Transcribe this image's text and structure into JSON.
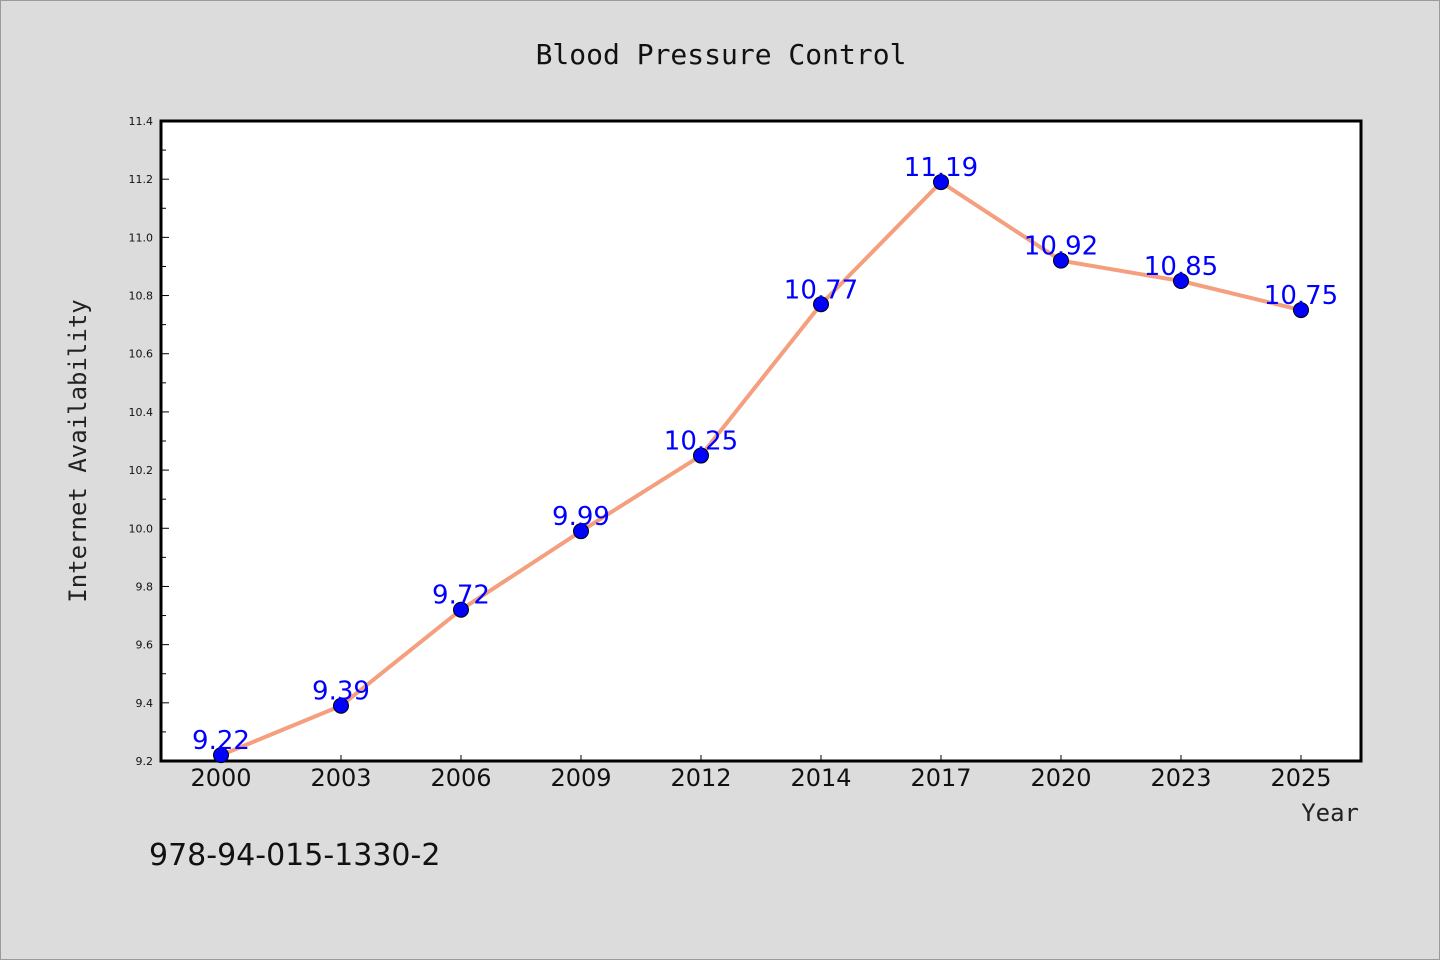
{
  "chart_data": {
    "type": "line",
    "title": "Blood Pressure Control",
    "xlabel": "Year",
    "ylabel": "Internet Availability",
    "categories": [
      "2000",
      "2003",
      "2006",
      "2009",
      "2012",
      "2014",
      "2017",
      "2020",
      "2023",
      "2025"
    ],
    "series": [
      {
        "values": [
          9.22,
          9.39,
          9.72,
          9.99,
          10.25,
          10.77,
          11.19,
          10.92,
          10.85,
          10.75
        ],
        "line_color": "#f4a07e",
        "marker_color": "#0000ff"
      }
    ],
    "data_labels": [
      "9.22",
      "9.39",
      "9.72",
      "9.99",
      "10.25",
      "10.77",
      "11.19",
      "10.92",
      "10.85",
      "10.75"
    ],
    "ylim": [
      9.2,
      11.4
    ],
    "yticks": [
      9.2,
      9.4,
      9.6,
      9.8,
      10.0,
      10.2,
      10.4,
      10.6,
      10.8,
      11.0,
      11.2,
      11.4
    ],
    "ytick_labels": [
      "9.2",
      "9.4",
      "9.6",
      "9.8",
      "10.0",
      "10.2",
      "10.4",
      "10.6",
      "10.8",
      "11.0",
      "11.2",
      "11.4"
    ],
    "grid": false,
    "legend": "none"
  },
  "annotation": {
    "isbn": "978-94-015-1330-2"
  },
  "colors": {
    "background": "#dcdcdc",
    "plot_background": "#ffffff",
    "label_color": "#0000ff"
  }
}
